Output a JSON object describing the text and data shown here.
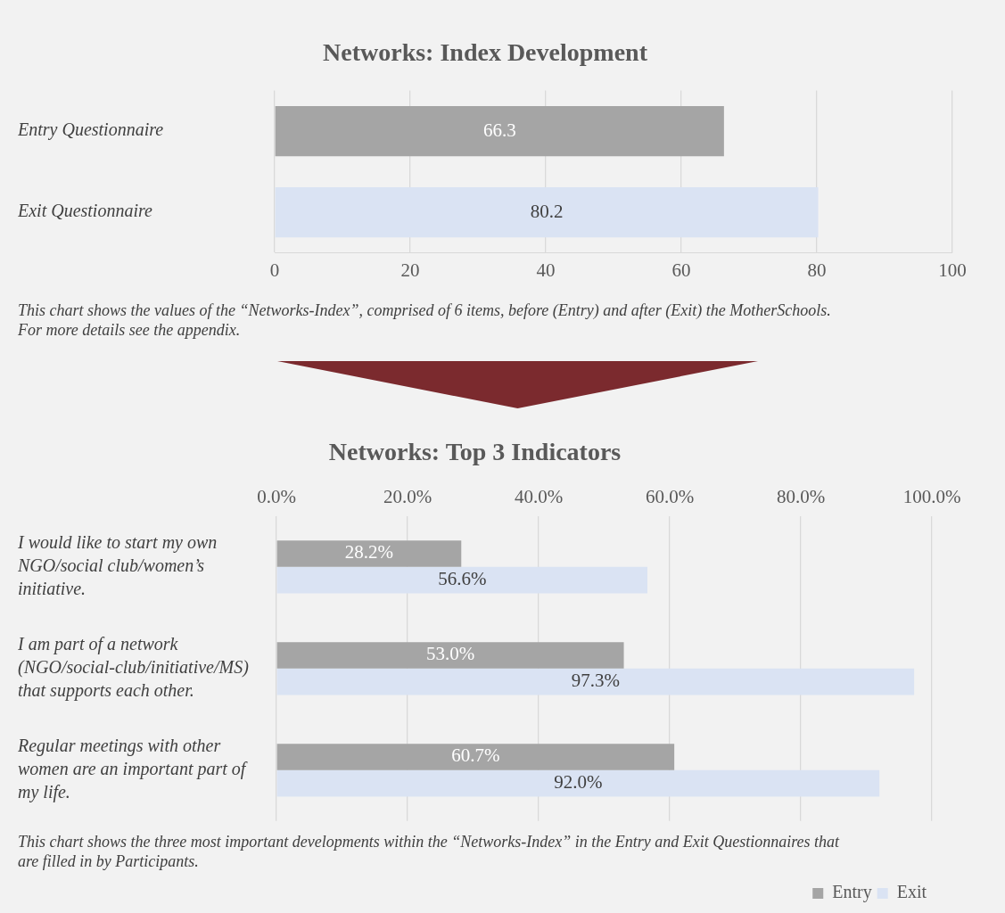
{
  "chart_data": [
    {
      "type": "bar",
      "orientation": "horizontal",
      "title": "Networks: Index Development",
      "categories": [
        "Entry Questionnaire",
        "Exit Questionnaire"
      ],
      "values": [
        66.3,
        80.2
      ],
      "colors": [
        "#a5a5a5",
        "#dae3f3"
      ],
      "data_labels": true,
      "xlim": [
        0,
        100
      ],
      "xticks": [
        0,
        20,
        40,
        60,
        80,
        100
      ],
      "grid": "x",
      "annotations": [
        "This chart shows the values of the “Networks-Index”, comprised of 6 items, before (Entry) and after (Exit) the MotherSchools. For more details see the appendix."
      ]
    },
    {
      "type": "bar",
      "orientation": "horizontal",
      "title": "Networks: Top 3 Indicators",
      "categories": [
        "I would like to start my own NGO/social club/women’s initiative.",
        "I am part of a network (NGO/social-club/initiative/MS) that supports each other.",
        "Regular meetings with other women are an important part of my life."
      ],
      "series": [
        {
          "name": "Entry",
          "color": "#a5a5a5",
          "values": [
            28.2,
            53.0,
            60.7
          ],
          "value_labels": [
            "28.2%",
            "53.0%",
            "60.7%"
          ]
        },
        {
          "name": "Exit",
          "color": "#dae3f3",
          "values": [
            56.6,
            97.3,
            92.0
          ],
          "value_labels": [
            "56.6%",
            "97.3%",
            "92.0%"
          ]
        }
      ],
      "x2lim": [
        0,
        100
      ],
      "x2ticks": [
        {
          "value": 0,
          "label": "0.0%"
        },
        {
          "value": 20,
          "label": "20.0%"
        },
        {
          "value": 40,
          "label": "40.0%"
        },
        {
          "value": 60,
          "label": "60.0%"
        },
        {
          "value": 80,
          "label": "80.0%"
        },
        {
          "value": 100,
          "label": "100.0%"
        }
      ],
      "grid": "x",
      "legend": "bottom right",
      "annotations": [
        "This chart shows the three most important developments within the “Networks-Index” in the Entry and Exit Questionnaires that are filled in by Participants."
      ]
    }
  ]
}
